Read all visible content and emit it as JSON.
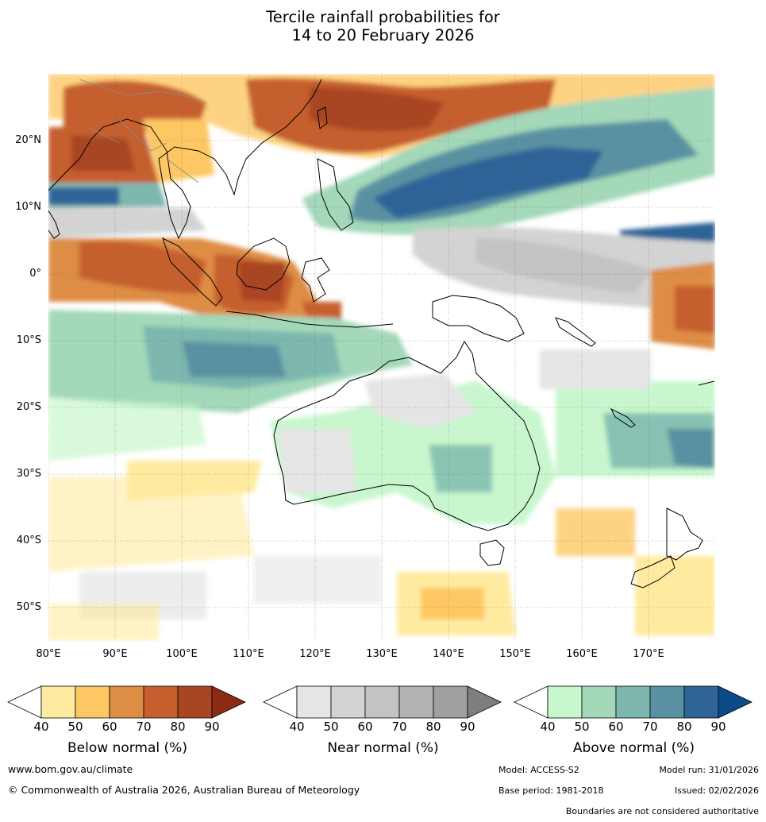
{
  "title": {
    "line1": "Tercile rainfall probabilities for",
    "line2": "14 to 20 February 2026"
  },
  "map": {
    "lat_labels": [
      "20°N",
      "10°N",
      "0°",
      "10°S",
      "20°S",
      "30°S",
      "40°S",
      "50°S"
    ],
    "lon_labels": [
      "80°E",
      "90°E",
      "100°E",
      "110°E",
      "120°E",
      "130°E",
      "140°E",
      "150°E",
      "160°E",
      "170°E"
    ]
  },
  "colorbars": [
    {
      "label": "Below normal (%)",
      "ticks": [
        "40",
        "50",
        "60",
        "70",
        "80",
        "90"
      ],
      "colors": [
        "#ffeba0",
        "#fdc864",
        "#de8d45",
        "#c65e2d",
        "#a84522",
        "#8c2a14"
      ]
    },
    {
      "label": "Near normal (%)",
      "ticks": [
        "40",
        "50",
        "60",
        "70",
        "80",
        "90"
      ],
      "colors": [
        "#e5e5e5",
        "#d3d3d3",
        "#c3c3c3",
        "#b2b2b2",
        "#a0a0a0",
        "#7e7e7e"
      ]
    },
    {
      "label": "Above normal (%)",
      "ticks": [
        "40",
        "50",
        "60",
        "70",
        "80",
        "90"
      ],
      "colors": [
        "#c8f7cd",
        "#a3d8b9",
        "#7db7ae",
        "#5a91a2",
        "#2f6497",
        "#0d4a87"
      ]
    }
  ],
  "footer": {
    "website": "www.bom.gov.au/climate",
    "copyright": "© Commonwealth of Australia 2026, Australian Bureau of Meteorology",
    "model": "Model: ACCESS-S2",
    "model_run": "Model run: 31/01/2026",
    "base_period": "Base period: 1981-2018",
    "issued": "Issued: 02/02/2026",
    "boundaries": "Boundaries are not considered authoritative"
  }
}
